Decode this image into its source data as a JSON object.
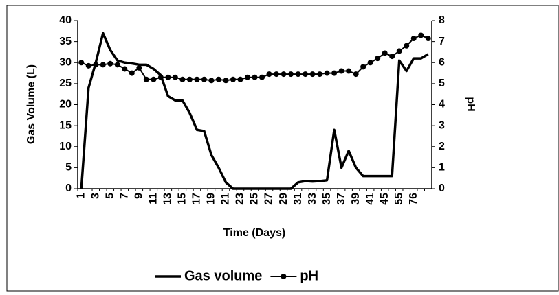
{
  "chart_data": {
    "type": "line",
    "x_label": "Time (Days)",
    "y_label": "Gas Volume (L)",
    "y2_label": "pH",
    "categories": [
      "1",
      null,
      "3",
      null,
      "5",
      null,
      "7",
      null,
      "9",
      null,
      "11",
      null,
      "13",
      null,
      "15",
      null,
      "17",
      null,
      "19",
      null,
      "21",
      null,
      "23",
      null,
      "25",
      null,
      "27",
      null,
      "29",
      null,
      "31",
      null,
      "33",
      null,
      "35",
      null,
      "37",
      null,
      "39",
      null,
      "41",
      null,
      "45",
      null,
      "55",
      null,
      "76",
      null,
      null
    ],
    "series": [
      {
        "name": "Gas volume",
        "color": "#000000",
        "values": [
          0,
          24,
          30,
          37,
          33,
          30.5,
          30,
          29.8,
          29.5,
          29.5,
          28.5,
          27,
          22,
          21,
          21,
          18,
          14,
          13.7,
          8,
          5,
          1.5,
          0,
          0,
          0,
          0,
          0,
          0,
          0,
          0,
          0,
          1.5,
          1.8,
          1.7,
          1.8,
          2,
          14,
          5,
          9,
          5,
          3,
          3,
          3,
          3,
          3,
          30.5,
          28,
          31,
          31,
          32
        ]
      },
      {
        "name": "pH",
        "color": "#000000",
        "axis": "y2",
        "marker": "circle",
        "values": [
          6.0,
          5.85,
          5.9,
          5.9,
          5.95,
          5.9,
          5.7,
          5.5,
          5.75,
          5.2,
          5.2,
          5.3,
          5.3,
          5.3,
          5.2,
          5.2,
          5.2,
          5.2,
          5.15,
          5.2,
          5.15,
          5.2,
          5.2,
          5.3,
          5.3,
          5.3,
          5.45,
          5.45,
          5.45,
          5.45,
          5.45,
          5.45,
          5.45,
          5.45,
          5.5,
          5.5,
          5.6,
          5.6,
          5.45,
          5.8,
          6.0,
          6.2,
          6.45,
          6.3,
          6.55,
          6.8,
          7.15,
          7.3,
          7.15
        ]
      }
    ],
    "ylim": [
      0,
      40
    ],
    "yticks": [
      0,
      5,
      10,
      15,
      20,
      25,
      30,
      35,
      40
    ],
    "y2lim": [
      0,
      8
    ],
    "y2ticks": [
      0,
      1,
      2,
      3,
      4,
      5,
      6,
      7,
      8
    ],
    "grid": false,
    "legend": "bottom"
  }
}
